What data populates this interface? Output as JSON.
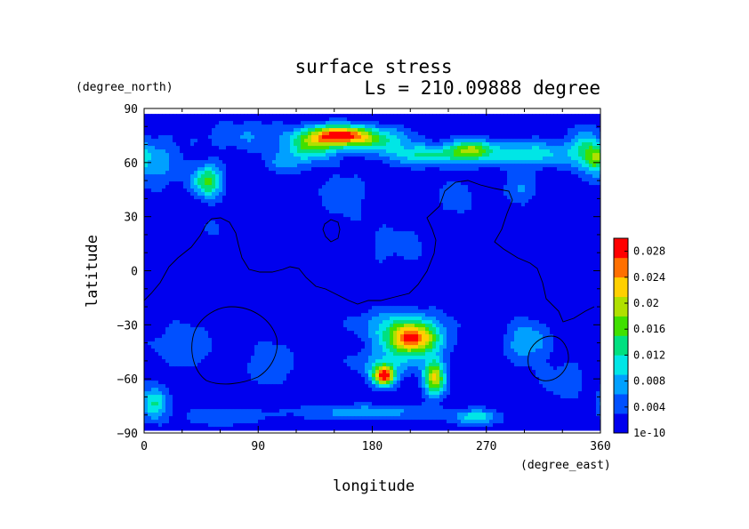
{
  "chart_data": {
    "type": "heatmap",
    "title": "surface stress",
    "subtitle": "Ls = 210.09888 degree",
    "xlabel": "longitude",
    "ylabel": "latitude",
    "x_units": "(degree_east)",
    "y_units": "(degree_north)",
    "xlim": [
      0,
      360
    ],
    "ylim": [
      -90,
      90
    ],
    "x_ticks": [
      0,
      90,
      180,
      270,
      360
    ],
    "y_ticks": [
      -90,
      -60,
      -30,
      0,
      30,
      60,
      90
    ],
    "x_tick_labels": [
      "0",
      "90",
      "180",
      "270",
      "360"
    ],
    "y_tick_labels": [
      "−90",
      "−60",
      "−30",
      "0",
      "30",
      "60",
      "90"
    ],
    "data_lat_range": [
      -87,
      87
    ],
    "colorbar": {
      "min": 1e-10,
      "max": 0.03,
      "tick_values": [
        0,
        0.004,
        0.008,
        0.012,
        0.016,
        0.02,
        0.024,
        0.028
      ],
      "tick_labels": [
        "1e-10",
        "0.004",
        "0.008",
        "0.012",
        "0.016",
        "0.02",
        "0.024",
        "0.028"
      ],
      "colors": [
        "#0000ee",
        "#0050ff",
        "#00a0ff",
        "#00e6e6",
        "#00e080",
        "#40e000",
        "#b0e000",
        "#ffd000",
        "#ff7000",
        "#ff0000"
      ]
    },
    "background_level": 0.0009,
    "features": [
      {
        "lon": 152,
        "lat": 75,
        "sx": 18,
        "sy": 4,
        "amp": 0.027
      },
      {
        "lon": 130,
        "lat": 68,
        "sx": 14,
        "sy": 5,
        "amp": 0.012
      },
      {
        "lon": 185,
        "lat": 72,
        "sx": 18,
        "sy": 5,
        "amp": 0.01
      },
      {
        "lon": 110,
        "lat": 60,
        "sx": 12,
        "sy": 4,
        "amp": 0.005
      },
      {
        "lon": 220,
        "lat": 64,
        "sx": 18,
        "sy": 4,
        "amp": 0.011
      },
      {
        "lon": 255,
        "lat": 67,
        "sx": 12,
        "sy": 4,
        "amp": 0.015
      },
      {
        "lon": 300,
        "lat": 65,
        "sx": 30,
        "sy": 5,
        "amp": 0.01
      },
      {
        "lon": 345,
        "lat": 68,
        "sx": 8,
        "sy": 8,
        "amp": 0.009
      },
      {
        "lon": 355,
        "lat": 62,
        "sx": 5,
        "sy": 5,
        "amp": 0.01
      },
      {
        "lon": 50,
        "lat": 50,
        "sx": 8,
        "sy": 6,
        "amp": 0.016
      },
      {
        "lon": 10,
        "lat": 60,
        "sx": 15,
        "sy": 10,
        "amp": 0.006
      },
      {
        "lon": 80,
        "lat": 75,
        "sx": 25,
        "sy": 6,
        "amp": 0.005
      },
      {
        "lon": 155,
        "lat": 42,
        "sx": 15,
        "sy": 10,
        "amp": 0.004
      },
      {
        "lon": 245,
        "lat": 42,
        "sx": 10,
        "sy": 8,
        "amp": 0.004
      },
      {
        "lon": 295,
        "lat": 46,
        "sx": 8,
        "sy": 6,
        "amp": 0.006
      },
      {
        "lon": 60,
        "lat": 25,
        "sx": 25,
        "sy": 8,
        "amp": 0.002
      },
      {
        "lon": 200,
        "lat": 15,
        "sx": 25,
        "sy": 10,
        "amp": 0.003
      },
      {
        "lon": 210,
        "lat": -37,
        "sx": 15,
        "sy": 6,
        "amp": 0.025
      },
      {
        "lon": 190,
        "lat": -50,
        "sx": 20,
        "sy": 6,
        "amp": 0.006
      },
      {
        "lon": 188,
        "lat": -57,
        "sx": 6,
        "sy": 4,
        "amp": 0.027
      },
      {
        "lon": 228,
        "lat": -58,
        "sx": 6,
        "sy": 7,
        "amp": 0.02
      },
      {
        "lon": 200,
        "lat": -28,
        "sx": 25,
        "sy": 6,
        "amp": 0.007
      },
      {
        "lon": 300,
        "lat": -38,
        "sx": 12,
        "sy": 8,
        "amp": 0.008
      },
      {
        "lon": 30,
        "lat": -40,
        "sx": 20,
        "sy": 10,
        "amp": 0.004
      },
      {
        "lon": 100,
        "lat": -50,
        "sx": 15,
        "sy": 10,
        "amp": 0.004
      },
      {
        "lon": 8,
        "lat": -72,
        "sx": 7,
        "sy": 6,
        "amp": 0.012
      },
      {
        "lon": 60,
        "lat": -80,
        "sx": 25,
        "sy": 4,
        "amp": 0.004
      },
      {
        "lon": 175,
        "lat": -77,
        "sx": 40,
        "sy": 3,
        "amp": 0.007
      },
      {
        "lon": 260,
        "lat": -80,
        "sx": 12,
        "sy": 3,
        "amp": 0.01
      },
      {
        "lon": 330,
        "lat": -60,
        "sx": 15,
        "sy": 8,
        "amp": 0.004
      }
    ]
  }
}
